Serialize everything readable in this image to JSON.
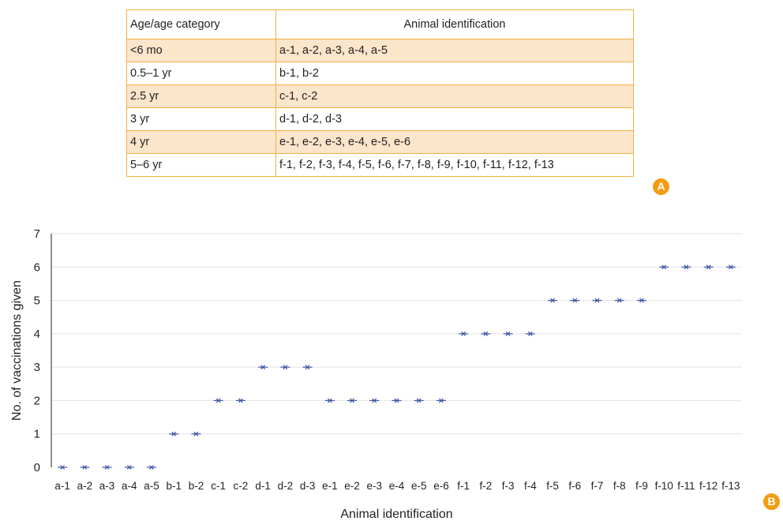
{
  "table": {
    "headers": [
      "Age/age category",
      "Animal identification"
    ],
    "rows": [
      [
        "<6 mo",
        "a-1, a-2, a-3, a-4, a-5"
      ],
      [
        "0.5–1 yr",
        "b-1, b-2"
      ],
      [
        "2.5 yr",
        "c-1, c-2"
      ],
      [
        "3 yr",
        "d-1, d-2, d-3"
      ],
      [
        "4 yr",
        "e-1, e-2, e-3, e-4, e-5, e-6"
      ],
      [
        "5–6 yr",
        "f-1, f-2, f-3, f-4, f-5, f-6, f-7, f-8, f-9, f-10, f-11, f-12, f-13"
      ]
    ],
    "border_color": "#f5b041",
    "shade_color": "#fbe5cb"
  },
  "badges": {
    "a": "A",
    "b": "B",
    "color": "#f39c12"
  },
  "chart_data": {
    "type": "scatter",
    "xlabel": "Animal identification",
    "ylabel": "No. of vaccinations given",
    "categories": [
      "a-1",
      "a-2",
      "a-3",
      "a-4",
      "a-5",
      "b-1",
      "b-2",
      "c-1",
      "c-2",
      "d-1",
      "d-2",
      "d-3",
      "e-1",
      "e-2",
      "e-3",
      "e-4",
      "e-5",
      "e-6",
      "f-1",
      "f-2",
      "f-3",
      "f-4",
      "f-5",
      "f-6",
      "f-7",
      "f-8",
      "f-9",
      "f-10",
      "f-11",
      "f-12",
      "f-13"
    ],
    "values": [
      0,
      0,
      0,
      0,
      0,
      1,
      1,
      2,
      2,
      3,
      3,
      3,
      2,
      2,
      2,
      2,
      2,
      2,
      4,
      4,
      4,
      4,
      5,
      5,
      5,
      5,
      5,
      6,
      6,
      6,
      6
    ],
    "ylim": [
      0,
      7
    ],
    "yticks": [
      0,
      1,
      2,
      3,
      4,
      5,
      6,
      7
    ],
    "grid": true,
    "marker": "star",
    "marker_color": "#3a55a4"
  }
}
